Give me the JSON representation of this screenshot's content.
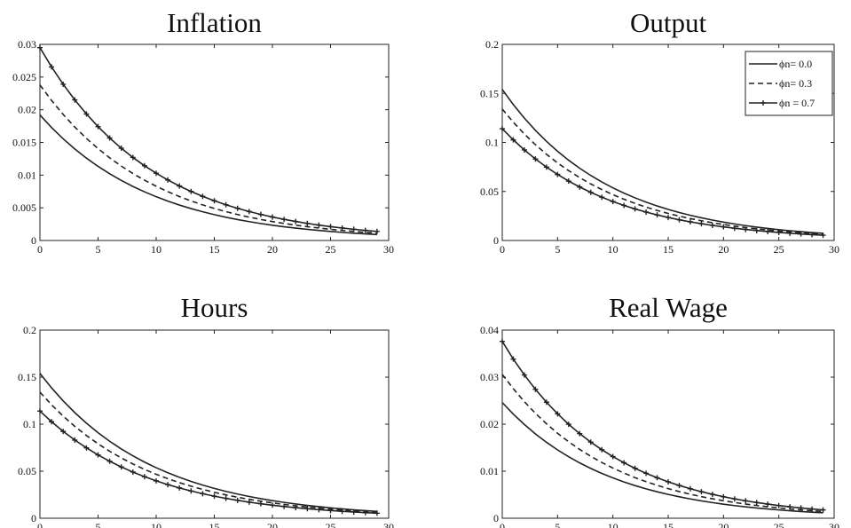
{
  "chart_data": [
    {
      "type": "line",
      "title": "Inflation",
      "xlim": [
        0,
        30
      ],
      "ylim": [
        0,
        0.03
      ],
      "xticks": [
        0,
        5,
        10,
        15,
        20,
        25,
        30
      ],
      "yticks": [
        0,
        0.005,
        0.01,
        0.015,
        0.02,
        0.025,
        0.03
      ],
      "ytick_labels": [
        "0",
        "0.005",
        "0.01",
        "0.015",
        "0.02",
        "0.025",
        "0.03"
      ],
      "series": [
        {
          "name": "ϕn= 0.0",
          "style": "solid",
          "x_start": 0,
          "x_end": 29,
          "y_start": 0.0192,
          "decay": 0.9
        },
        {
          "name": "ϕn= 0.3",
          "style": "dashed",
          "x_start": 0,
          "x_end": 29,
          "y_start": 0.0238,
          "decay": 0.9
        },
        {
          "name": "ϕn = 0.7",
          "style": "marker",
          "x_start": 0,
          "x_end": 29,
          "y_start": 0.0295,
          "decay": 0.9
        }
      ]
    },
    {
      "type": "line",
      "title": "Output",
      "xlim": [
        0,
        30
      ],
      "ylim": [
        0,
        0.2
      ],
      "xticks": [
        0,
        5,
        10,
        15,
        20,
        25,
        30
      ],
      "yticks": [
        0,
        0.05,
        0.1,
        0.15,
        0.2
      ],
      "ytick_labels": [
        "0",
        "0.05",
        "0.1",
        "0.15",
        "0.2"
      ],
      "legend": {
        "position": "top-right",
        "entries": [
          {
            "label": "ϕn= 0.0",
            "style": "solid"
          },
          {
            "label": "ϕn= 0.3",
            "style": "dashed"
          },
          {
            "label": "ϕn = 0.7",
            "style": "marker"
          }
        ]
      },
      "series": [
        {
          "name": "ϕn= 0.0",
          "style": "solid",
          "x_start": 0,
          "x_end": 29,
          "y_start": 0.154,
          "decay": 0.9
        },
        {
          "name": "ϕn= 0.3",
          "style": "dashed",
          "x_start": 0,
          "x_end": 29,
          "y_start": 0.134,
          "decay": 0.9
        },
        {
          "name": "ϕn = 0.7",
          "style": "marker",
          "x_start": 0,
          "x_end": 29,
          "y_start": 0.114,
          "decay": 0.9
        }
      ]
    },
    {
      "type": "line",
      "title": "Hours",
      "xlim": [
        0,
        30
      ],
      "ylim": [
        0,
        0.2
      ],
      "xticks": [
        0,
        5,
        10,
        15,
        20,
        25,
        30
      ],
      "yticks": [
        0,
        0.05,
        0.1,
        0.15,
        0.2
      ],
      "ytick_labels": [
        "0",
        "0.05",
        "0.1",
        "0.15",
        "0.2"
      ],
      "series": [
        {
          "name": "ϕn= 0.0",
          "style": "solid",
          "x_start": 0,
          "x_end": 29,
          "y_start": 0.154,
          "decay": 0.9
        },
        {
          "name": "ϕn= 0.3",
          "style": "dashed",
          "x_start": 0,
          "x_end": 29,
          "y_start": 0.134,
          "decay": 0.9
        },
        {
          "name": "ϕn = 0.7",
          "style": "marker",
          "x_start": 0,
          "x_end": 29,
          "y_start": 0.114,
          "decay": 0.9
        }
      ]
    },
    {
      "type": "line",
      "title": "Real Wage",
      "xlim": [
        0,
        30
      ],
      "ylim": [
        0,
        0.04
      ],
      "xticks": [
        0,
        5,
        10,
        15,
        20,
        25,
        30
      ],
      "yticks": [
        0,
        0.01,
        0.02,
        0.03,
        0.04
      ],
      "ytick_labels": [
        "0",
        "0.01",
        "0.02",
        "0.03",
        "0.04"
      ],
      "series": [
        {
          "name": "ϕn= 0.0",
          "style": "solid",
          "x_start": 0,
          "x_end": 29,
          "y_start": 0.0246,
          "decay": 0.9
        },
        {
          "name": "ϕn= 0.3",
          "style": "dashed",
          "x_start": 0,
          "x_end": 29,
          "y_start": 0.0306,
          "decay": 0.9
        },
        {
          "name": "ϕn = 0.7",
          "style": "marker",
          "x_start": 0,
          "x_end": 29,
          "y_start": 0.0376,
          "decay": 0.9
        }
      ]
    }
  ]
}
